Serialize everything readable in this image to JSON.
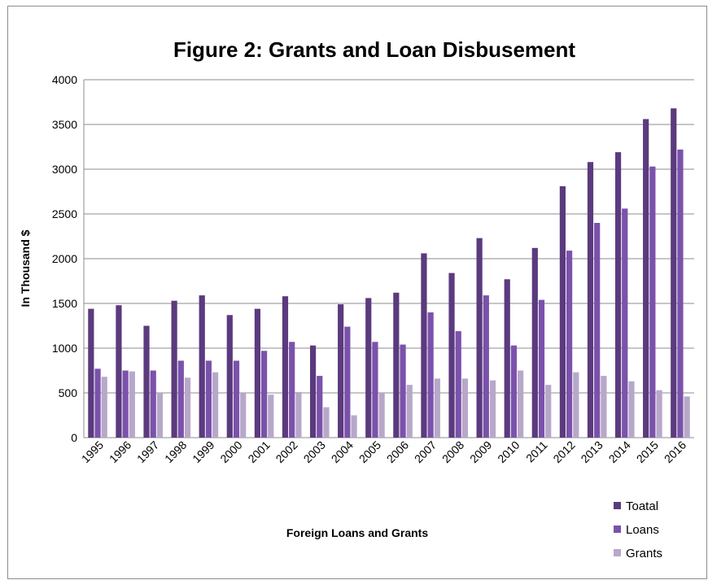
{
  "chart_data": {
    "type": "bar",
    "title": "Figure 2: Grants and Loan  Disbusement",
    "xlabel": "Foreign Loans and Grants",
    "ylabel": "In  Thousand   $",
    "ylim": [
      0,
      4000
    ],
    "yticks": [
      0,
      500,
      1000,
      1500,
      2000,
      2500,
      3000,
      3500,
      4000
    ],
    "grid": true,
    "legend_position": "bottom-right",
    "categories": [
      "1995",
      "1996",
      "1997",
      "1998",
      "1999",
      "2000",
      "2001",
      "2002",
      "2003",
      "2004",
      "2005",
      "2006",
      "2007",
      "2008",
      "2009",
      "2010",
      "2011",
      "2012",
      "2013",
      "2014",
      "2015",
      "2016"
    ],
    "series": [
      {
        "name": "Toatal",
        "color": "#5b3a7e",
        "values": [
          1440,
          1480,
          1250,
          1530,
          1590,
          1370,
          1440,
          1580,
          1030,
          1490,
          1560,
          1620,
          2060,
          1840,
          2230,
          1770,
          2120,
          2810,
          3080,
          3190,
          3560,
          3680
        ]
      },
      {
        "name": "Loans",
        "color": "#7b52ab",
        "values": [
          770,
          750,
          750,
          860,
          860,
          860,
          970,
          1070,
          690,
          1240,
          1070,
          1040,
          1400,
          1190,
          1590,
          1030,
          1540,
          2090,
          2400,
          2560,
          3030,
          3220
        ]
      },
      {
        "name": "Grants",
        "color": "#b7a8c9",
        "values": [
          680,
          740,
          500,
          670,
          730,
          500,
          480,
          510,
          340,
          250,
          500,
          590,
          660,
          660,
          640,
          750,
          590,
          730,
          690,
          630,
          530,
          460
        ]
      }
    ]
  }
}
